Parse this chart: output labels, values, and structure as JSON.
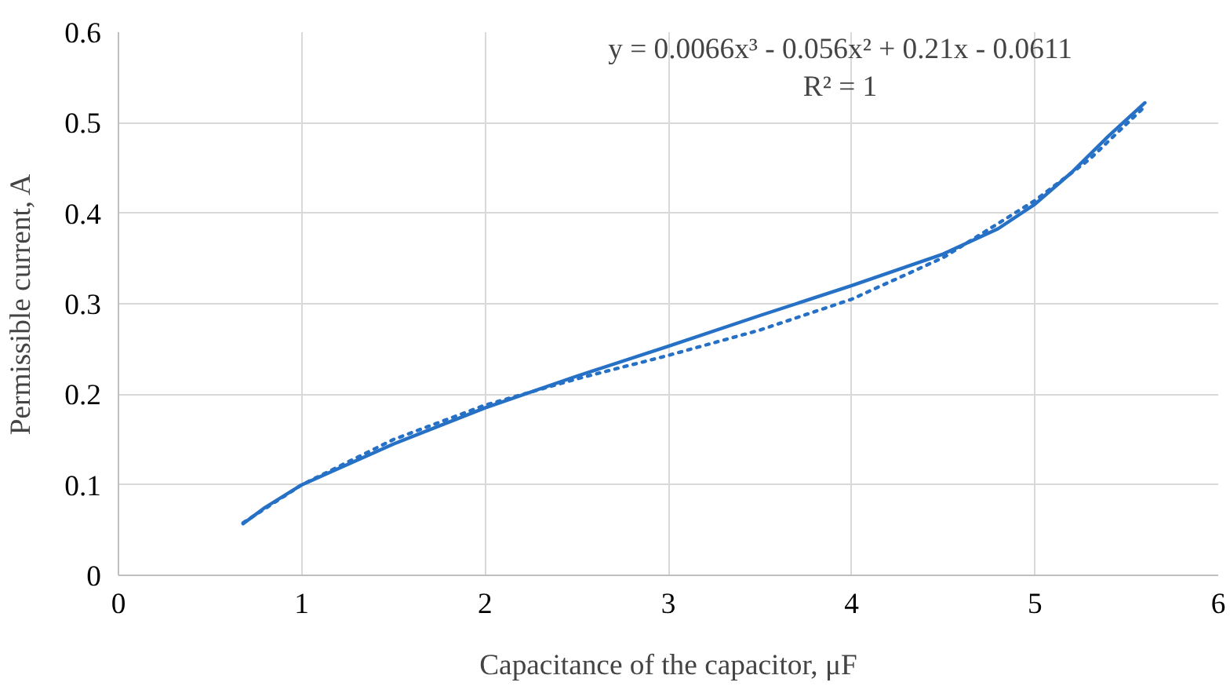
{
  "chart_data": {
    "type": "line",
    "xlabel": "Capacitance of the capacitor, μF",
    "ylabel": "Permissible current, A",
    "xlim": [
      0,
      6
    ],
    "xticks": [
      0,
      1,
      2,
      3,
      4,
      5,
      6
    ],
    "ylim": [
      0,
      0.6
    ],
    "yticks": [
      0,
      0.1,
      0.2,
      0.3,
      0.4,
      0.5,
      0.6
    ],
    "grid": true,
    "annotations": [
      "y = 0.0066x³ - 0.056x² + 0.21x - 0.0611",
      "R² = 1"
    ],
    "series": [
      {
        "color": "#2671c5",
        "line_style": "solid",
        "x": [
          0.68,
          0.8,
          1.0,
          1.5,
          2.0,
          2.5,
          3.0,
          3.5,
          4.0,
          4.5,
          4.8,
          5.0,
          5.2,
          5.4,
          5.6
        ],
        "values": [
          0.057,
          0.075,
          0.1,
          0.145,
          0.185,
          0.22,
          0.253,
          0.287,
          0.32,
          0.355,
          0.383,
          0.41,
          0.445,
          0.485,
          0.522
        ]
      },
      {
        "color": "#2671c5",
        "line_style": "dotted",
        "x": [
          0.68,
          1.0,
          1.5,
          2.0,
          2.5,
          3.0,
          3.5,
          4.0,
          4.5,
          5.0,
          5.3,
          5.6
        ],
        "values": [
          0.058,
          0.1,
          0.15,
          0.188,
          0.217,
          0.243,
          0.271,
          0.305,
          0.351,
          0.414,
          0.46,
          0.518
        ]
      }
    ]
  }
}
